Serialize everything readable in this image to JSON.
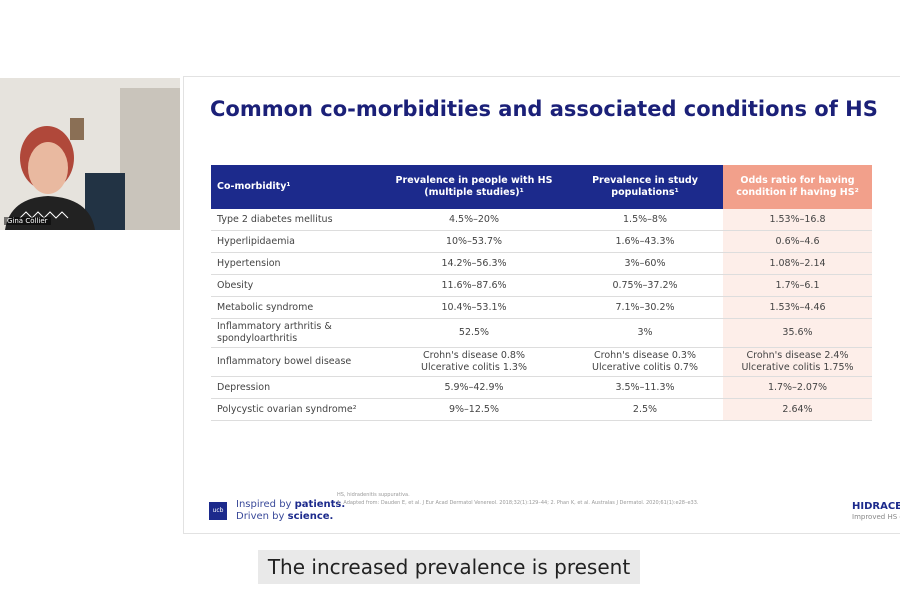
{
  "video": {
    "participant_name": "Gina Collier"
  },
  "slide": {
    "title": "Common co-morbidities and associated conditions of HS",
    "table": {
      "header": [
        [
          "Co-morbidity¹"
        ],
        [
          "Prevalence in people with HS",
          "(multiple studies)¹"
        ],
        [
          "Prevalence in study",
          "populations¹"
        ],
        [
          "Odds ratio for having",
          "condition if having HS²"
        ]
      ],
      "rows": [
        [
          [
            "Type 2 diabetes mellitus"
          ],
          [
            "4.5%–20%"
          ],
          [
            "1.5%–8%"
          ],
          [
            "1.53%–16.8"
          ]
        ],
        [
          [
            "Hyperlipidaemia"
          ],
          [
            "10%–53.7%"
          ],
          [
            "1.6%–43.3%"
          ],
          [
            "0.6%–4.6"
          ]
        ],
        [
          [
            "Hypertension"
          ],
          [
            "14.2%–56.3%"
          ],
          [
            "3%–60%"
          ],
          [
            "1.08%–2.14"
          ]
        ],
        [
          [
            "Obesity"
          ],
          [
            "11.6%–87.6%"
          ],
          [
            "0.75%–37.2%"
          ],
          [
            "1.7%–6.1"
          ]
        ],
        [
          [
            "Metabolic syndrome"
          ],
          [
            "10.4%–53.1%"
          ],
          [
            "7.1%–30.2%"
          ],
          [
            "1.53%–4.46"
          ]
        ],
        [
          [
            "Inflammatory arthritis &",
            "spondyloarthritis"
          ],
          [
            "52.5%"
          ],
          [
            "3%"
          ],
          [
            "35.6%"
          ]
        ],
        [
          [
            "Inflammatory bowel disease"
          ],
          [
            "Crohn's disease 0.8%",
            "Ulcerative colitis 1.3%"
          ],
          [
            "Crohn's disease 0.3%",
            "Ulcerative colitis 0.7%"
          ],
          [
            "Crohn's disease 2.4%",
            "Ulcerative colitis 1.75%"
          ]
        ],
        [
          [
            "Depression"
          ],
          [
            "5.9%–42.9%"
          ],
          [
            "3.5%–11.3%"
          ],
          [
            "1.7%–2.07%"
          ]
        ],
        [
          [
            "Polycystic ovarian syndrome²"
          ],
          [
            "9%–12.5%"
          ],
          [
            "2.5%"
          ],
          [
            "2.64%"
          ]
        ]
      ]
    },
    "footnotes": [
      "HS, hidradenitis suppurativa.",
      "1. Adapted from: Dauden E, et al. J Eur Acad Dermatol Venereol. 2018;32(1):129–44; 2. Phan K, et al. Australas J Dermatol. 2020;61(1):e28–e33."
    ],
    "logo": "ucb",
    "tagline": [
      [
        "Inspired by ",
        "patients."
      ],
      [
        "Driven by ",
        "science."
      ]
    ],
    "brand": "HIDRACE",
    "brand_subtitle": "Improved HS c"
  },
  "caption": "The increased prevalence is present"
}
